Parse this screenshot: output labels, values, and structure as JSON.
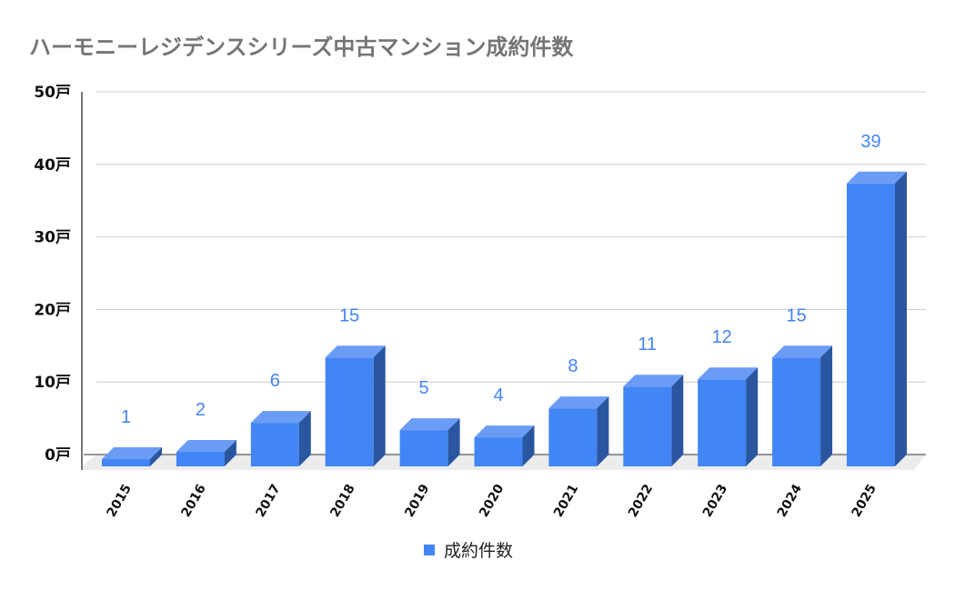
{
  "chart_data": {
    "type": "bar",
    "title": "ハーモニーレジデンスシリーズ中古マンション成約件数",
    "categories": [
      "2015",
      "2016",
      "2017",
      "2018",
      "2019",
      "2020",
      "2021",
      "2022",
      "2023",
      "2024",
      "2025"
    ],
    "series": [
      {
        "name": "成約件数",
        "values": [
          1,
          2,
          6,
          15,
          5,
          4,
          8,
          11,
          12,
          15,
          39
        ],
        "color": "#4285f4"
      }
    ],
    "xlabel": "",
    "ylabel": "",
    "ylim": [
      0,
      50
    ],
    "yticks": [
      0,
      10,
      20,
      30,
      40,
      50
    ],
    "ytick_labels": [
      "0戸",
      "10戸",
      "20戸",
      "30戸",
      "40戸",
      "50戸"
    ],
    "grid": true,
    "legend_position": "bottom",
    "data_labels": true,
    "style": "3d",
    "colors": {
      "bar_front": "#4285f4",
      "bar_top": "#6a9cf5",
      "bar_side": "#2a56a0",
      "data_label": "#4285f4",
      "grid": "#cccccc",
      "floor": "#ececec"
    }
  },
  "title": "ハーモニーレジデンスシリーズ中古マンション成約件数",
  "legend": {
    "label": "成約件数"
  }
}
